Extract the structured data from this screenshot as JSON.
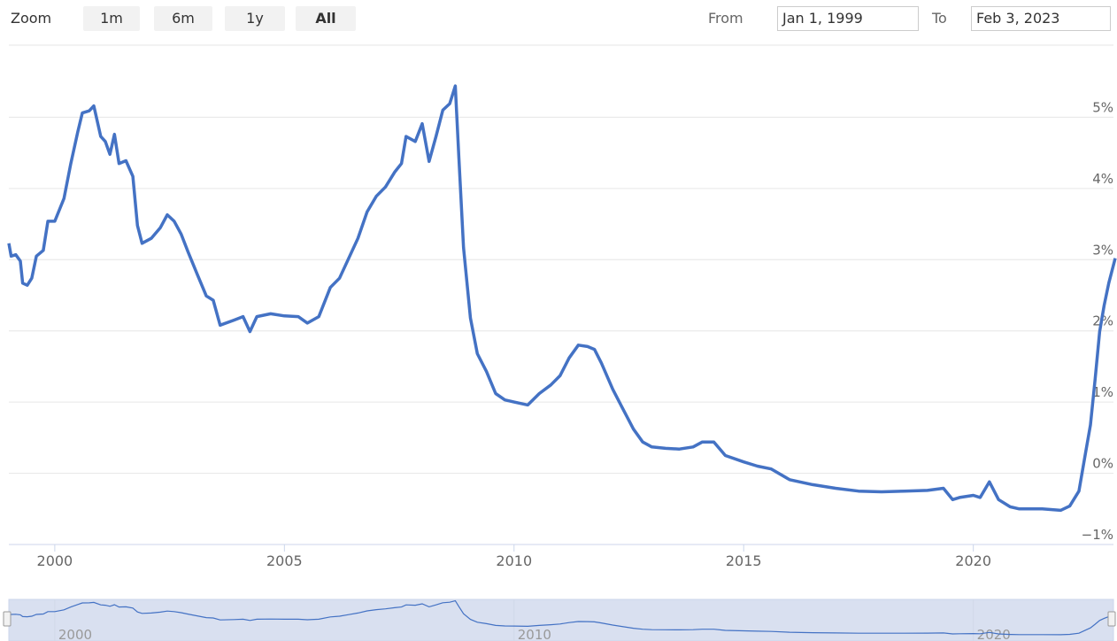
{
  "ui": {
    "zoom_label": "Zoom",
    "buttons": [
      "1m",
      "6m",
      "1y",
      "All"
    ],
    "from_label": "From",
    "from_value": "Jan 1, 1999",
    "to_label": "To",
    "to_value": "Feb 3, 2023"
  },
  "chart_data": {
    "type": "line",
    "color": "#4472c4",
    "x": [
      1999.0,
      1999.05,
      1999.15,
      1999.25,
      1999.3,
      1999.4,
      1999.5,
      1999.6,
      1999.75,
      1999.85,
      2000.0,
      2000.2,
      2000.35,
      2000.5,
      2000.6,
      2000.75,
      2000.85,
      2001.0,
      2001.1,
      2001.2,
      2001.3,
      2001.4,
      2001.55,
      2001.7,
      2001.8,
      2001.9,
      2002.1,
      2002.3,
      2002.45,
      2002.6,
      2002.75,
      2002.9,
      2003.1,
      2003.3,
      2003.45,
      2003.6,
      2003.9,
      2004.1,
      2004.25,
      2004.4,
      2004.7,
      2005.0,
      2005.3,
      2005.5,
      2005.75,
      2006.0,
      2006.2,
      2006.4,
      2006.6,
      2006.8,
      2007.0,
      2007.2,
      2007.4,
      2007.55,
      2007.65,
      2007.85,
      2008.0,
      2008.15,
      2008.3,
      2008.45,
      2008.6,
      2008.72,
      2008.8,
      2008.9,
      2009.05,
      2009.2,
      2009.4,
      2009.6,
      2009.8,
      2010.0,
      2010.3,
      2010.55,
      2010.8,
      2011.0,
      2011.2,
      2011.4,
      2011.6,
      2011.75,
      2011.9,
      2012.15,
      2012.35,
      2012.6,
      2012.8,
      2013.0,
      2013.3,
      2013.6,
      2013.9,
      2014.1,
      2014.35,
      2014.6,
      2015.0,
      2015.3,
      2015.6,
      2016.0,
      2016.5,
      2017.0,
      2017.5,
      2018.0,
      2018.5,
      2019.0,
      2019.35,
      2019.55,
      2019.7,
      2020.0,
      2020.15,
      2020.35,
      2020.55,
      2020.8,
      2021.0,
      2021.5,
      2021.9,
      2022.1,
      2022.3,
      2022.45,
      2022.55,
      2022.65,
      2022.75,
      2022.85,
      2022.95,
      2023.09
    ],
    "values": [
      3.23,
      3.05,
      3.07,
      2.98,
      2.67,
      2.64,
      2.74,
      3.05,
      3.13,
      3.54,
      3.54,
      3.86,
      4.35,
      4.79,
      5.06,
      5.09,
      5.16,
      4.73,
      4.66,
      4.48,
      4.76,
      4.35,
      4.39,
      4.17,
      3.48,
      3.23,
      3.3,
      3.45,
      3.63,
      3.54,
      3.36,
      3.11,
      2.8,
      2.49,
      2.43,
      2.08,
      2.15,
      2.2,
      1.99,
      2.2,
      2.24,
      2.21,
      2.2,
      2.11,
      2.2,
      2.61,
      2.74,
      3.02,
      3.3,
      3.67,
      3.89,
      4.02,
      4.23,
      4.35,
      4.73,
      4.66,
      4.91,
      4.38,
      4.73,
      5.1,
      5.19,
      5.44,
      4.42,
      3.17,
      2.18,
      1.68,
      1.43,
      1.12,
      1.03,
      1.0,
      0.96,
      1.12,
      1.24,
      1.37,
      1.62,
      1.8,
      1.78,
      1.74,
      1.55,
      1.18,
      0.93,
      0.62,
      0.44,
      0.37,
      0.35,
      0.34,
      0.37,
      0.44,
      0.44,
      0.25,
      0.16,
      0.1,
      0.06,
      -0.09,
      -0.16,
      -0.21,
      -0.25,
      -0.26,
      -0.25,
      -0.24,
      -0.21,
      -0.37,
      -0.34,
      -0.31,
      -0.34,
      -0.12,
      -0.37,
      -0.47,
      -0.5,
      -0.5,
      -0.52,
      -0.46,
      -0.25,
      0.31,
      0.68,
      1.31,
      1.99,
      2.36,
      2.67,
      3.02
    ],
    "xlim": [
      1999.0,
      2023.09
    ],
    "xticks": [
      2000,
      2005,
      2010,
      2015,
      2020
    ],
    "ylim": [
      -1,
      6
    ],
    "yticks": [
      {
        "value": -1,
        "label": "−1%"
      },
      {
        "value": 0,
        "label": "0%"
      },
      {
        "value": 1,
        "label": "1%"
      },
      {
        "value": 2,
        "label": "2%"
      },
      {
        "value": 3,
        "label": "3%"
      },
      {
        "value": 4,
        "label": "4%"
      },
      {
        "value": 5,
        "label": "5%"
      }
    ],
    "grid": true,
    "navigator_xticks": [
      2000,
      2010,
      2020
    ]
  }
}
